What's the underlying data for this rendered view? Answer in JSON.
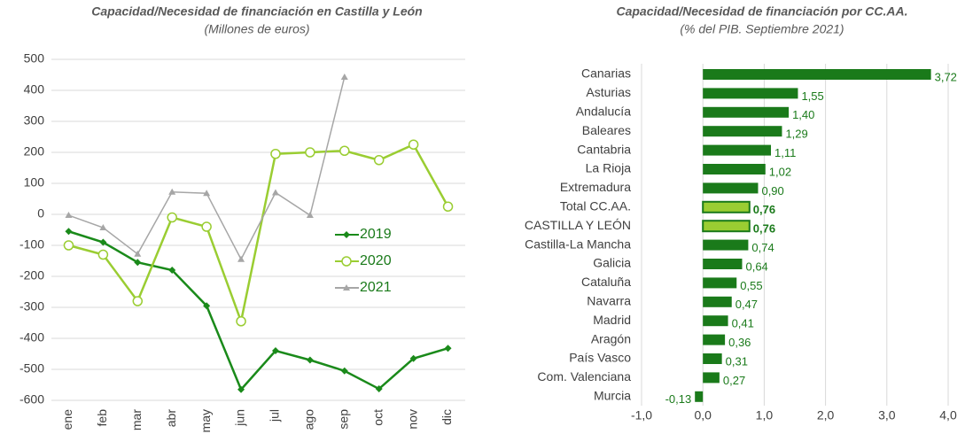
{
  "chart_data": [
    {
      "type": "line",
      "title": "Capacidad/Necesidad de financiación en Castilla y León",
      "subtitle": "(Millones de euros)",
      "categories": [
        "ene",
        "feb",
        "mar",
        "abr",
        "may",
        "jun",
        "jul",
        "ago",
        "sep",
        "oct",
        "nov",
        "dic"
      ],
      "series": [
        {
          "name": "2019",
          "color": "#1a8a1a",
          "marker": "diamond",
          "values": [
            -55,
            -90,
            -155,
            -180,
            -295,
            -565,
            -440,
            -470,
            -505,
            -563,
            -465,
            -432
          ]
        },
        {
          "name": "2020",
          "color": "#9acd32",
          "marker": "circle",
          "values": [
            -100,
            -130,
            -280,
            -10,
            -40,
            -345,
            195,
            200,
            205,
            175,
            225,
            25
          ]
        },
        {
          "name": "2021",
          "color": "#a6a6a6",
          "marker": "triangle",
          "values": [
            -3,
            -43,
            -128,
            72,
            68,
            -145,
            70,
            -3,
            443,
            null,
            null,
            null
          ]
        }
      ],
      "ylim": [
        -600,
        500
      ],
      "yticks": [
        -600,
        -500,
        -400,
        -300,
        -200,
        -100,
        0,
        100,
        200,
        300,
        400,
        500
      ],
      "grid": true
    },
    {
      "type": "hbar",
      "title": "Capacidad/Necesidad de financiación por CC.AA.",
      "subtitle": "(% del PIB. Septiembre 2021)",
      "categories": [
        "Canarias",
        "Asturias",
        "Andalucía",
        "Baleares",
        "Cantabria",
        "La Rioja",
        "Extremadura",
        "Total CC.AA.",
        "CASTILLA Y LEÓN",
        "Castilla-La Mancha",
        "Galicia",
        "Cataluña",
        "Navarra",
        "Madrid",
        "Aragón",
        "País Vasco",
        "Com. Valenciana",
        "Murcia"
      ],
      "values": [
        3.72,
        1.55,
        1.4,
        1.29,
        1.11,
        1.02,
        0.9,
        0.76,
        0.76,
        0.74,
        0.64,
        0.55,
        0.47,
        0.41,
        0.36,
        0.31,
        0.27,
        -0.13
      ],
      "value_labels": [
        "3,72",
        "1,55",
        "1,40",
        "1,29",
        "1,11",
        "1,02",
        "0,90",
        "0,76",
        "0,76",
        "0,74",
        "0,64",
        "0,55",
        "0,47",
        "0,41",
        "0,36",
        "0,31",
        "0,27",
        "-0,13"
      ],
      "colors": [
        "#1a7a1a",
        "#1a7a1a",
        "#1a7a1a",
        "#1a7a1a",
        "#1a7a1a",
        "#1a7a1a",
        "#1a7a1a",
        "#9acd32",
        "#9acd32",
        "#1a7a1a",
        "#1a7a1a",
        "#1a7a1a",
        "#1a7a1a",
        "#1a7a1a",
        "#1a7a1a",
        "#1a7a1a",
        "#1a7a1a",
        "#1a7a1a"
      ],
      "xlim": [
        -1,
        4
      ],
      "xticks": [
        {
          "value": -1,
          "label": "-1,0"
        },
        {
          "value": 0,
          "label": "0,0"
        },
        {
          "value": 1,
          "label": "1,0"
        },
        {
          "value": 2,
          "label": "2,0"
        },
        {
          "value": 3,
          "label": "3,0"
        },
        {
          "value": 4,
          "label": "4,0"
        }
      ],
      "grid": true
    }
  ]
}
